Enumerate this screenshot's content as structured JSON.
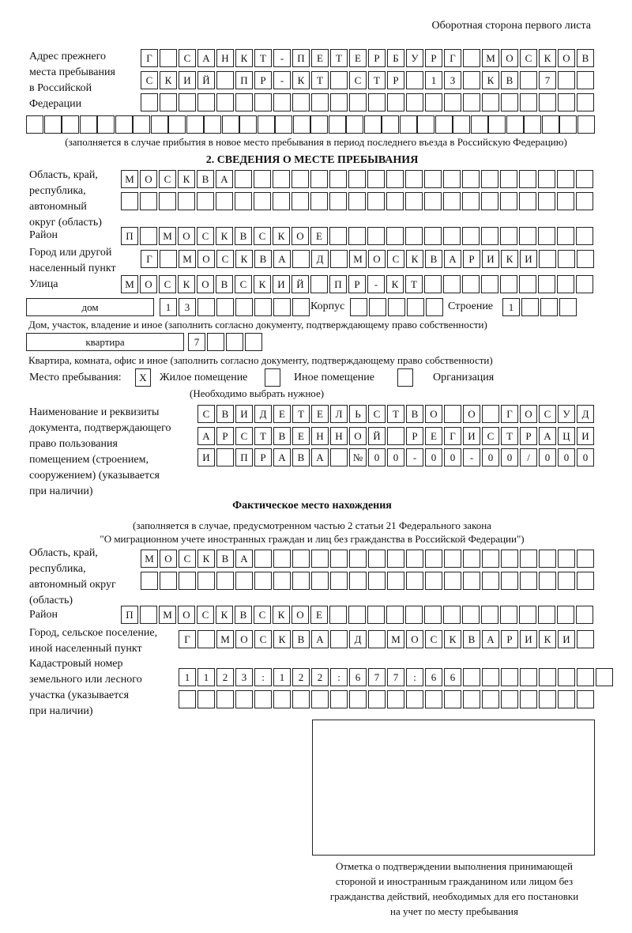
{
  "header": "Оборотная сторона первого листа",
  "prev_address": {
    "label": [
      "Адрес прежнего",
      "места пребывания",
      "в Российской",
      "Федерации"
    ],
    "rows": [
      "Г САНКТ-ПЕТЕРБУРГ МОСКОВ",
      "СКИЙ ПР-КТ СТР 13 КВ 7  ",
      "                        ",
      "                                "
    ],
    "note": "(заполняется в случае прибытия в новое место пребывания в период последнего въезда в Российскую Федерацию)"
  },
  "section2": {
    "title": "2. СВЕДЕНИЯ О МЕСТЕ ПРЕБЫВАНИЯ",
    "region_label": [
      "Область, край,",
      "республика,",
      "автономный",
      "округ (область)"
    ],
    "region_rows": [
      "МОСКВА                   ",
      "                         "
    ],
    "district_label": "Район",
    "district_row": "П МОСКВСКОЕ              ",
    "city_label": [
      "Город или другой",
      "населенный пункт"
    ],
    "city_row": "Г МОСКВА Д МОСКВАРИКИ   ",
    "street_label": "Улица",
    "street_row": "МОСКОВСКИЙ ПР-КТ         ",
    "house_type": "дом",
    "house_row": "13      ",
    "korpus_label": "Корпус",
    "korpus_row": "     ",
    "building_label": "Строение",
    "building_row": "1   ",
    "house_note": "Дом, участок, владение и иное (заполнить согласно документу, подтверждающему право собственности)",
    "flat_type": "квартира",
    "flat_row": "7   ",
    "flat_note": "Квартира, комната, офис и иное (заполнить согласно документу, подтверждающему право собственности)",
    "stay_label": "Место пребывания:",
    "opt_residential": {
      "mark": "X",
      "label": "Жилое помещение"
    },
    "opt_other": {
      "mark": "",
      "label": "Иное помещение"
    },
    "opt_org": {
      "mark": "",
      "label": "Организация"
    },
    "choose_note": "(Необходимо выбрать нужное)",
    "doc_label": [
      "Наименование и реквизиты",
      "документа, подтверждающего",
      "право пользования",
      "помещением (строением,",
      "сооружением) (указывается",
      "при наличии)"
    ],
    "doc_rows": [
      "СВИДЕТЕЛЬСТВО О ГОСУД",
      "АРСТВЕННОЙ РЕГИСТРАЦИ",
      "И ПРАВА №00-00-00/000"
    ]
  },
  "actual": {
    "title": "Фактическое место нахождения",
    "note1": "(заполняется в случае, предусмотренном частью 2 статьи 21 Федерального закона",
    "note2": "\"О миграционном учете иностранных граждан и лиц без гражданства в Российской Федерации\")",
    "region_label": [
      "Область, край,",
      "республика,",
      "автономный округ",
      "(область)"
    ],
    "region_rows": [
      "МОСКВА                  ",
      "                        "
    ],
    "district_label": "Район",
    "district_row": "П МОСКВСКОЕ              ",
    "city_label": [
      "Город, сельское поселение,",
      "иной населенный пункт"
    ],
    "city_row": "Г МОСКВА Д МОСКВАРИКИ ",
    "cadastral_label": [
      "Кадастровый номер",
      "земельного или лесного",
      "участка (указывается",
      "при наличии)"
    ],
    "cadastral_rows": [
      "1123:122:677:66        ",
      "                      "
    ]
  },
  "stamp_caption": [
    "Отметка о подтверждении выполнения принимающей",
    "стороной и иностранным гражданином или лицом без",
    "гражданства действий, необходимых для его постановки",
    "на учет по месту пребывания"
  ]
}
